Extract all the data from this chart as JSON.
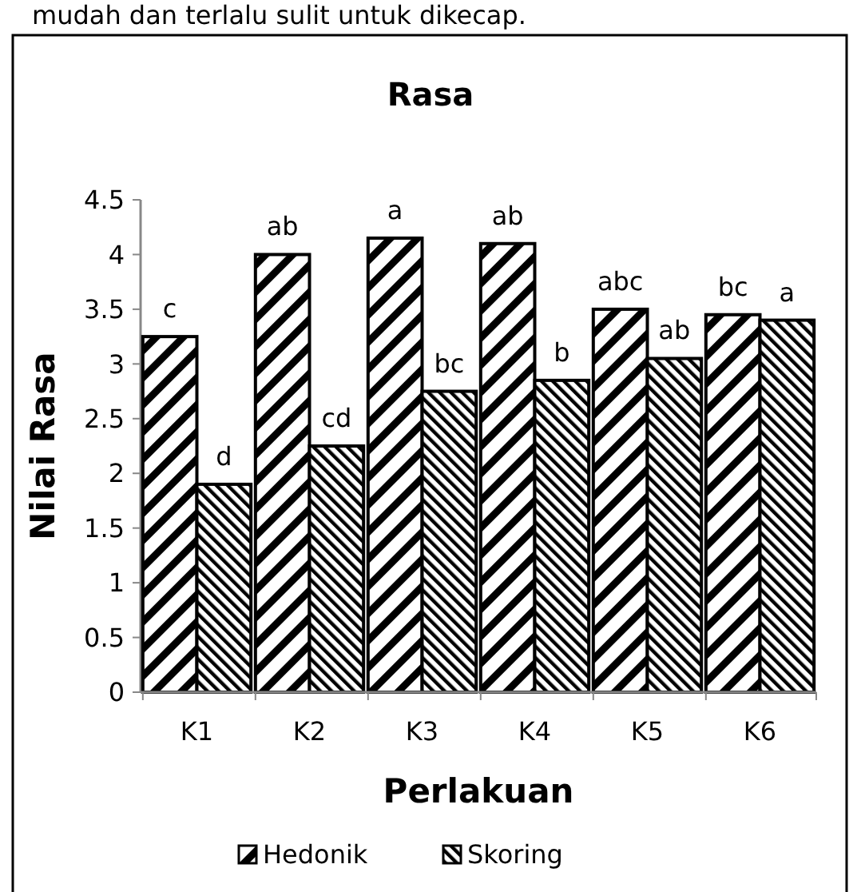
{
  "chart_data": {
    "type": "bar",
    "title": "Rasa",
    "xlabel": "Perlakuan",
    "ylabel": "Nilai Rasa",
    "annotations": [
      "mudah dan terlalu sulit untuk dikecap."
    ],
    "categories": [
      "K1",
      "K2",
      "K3",
      "K4",
      "K5",
      "K6"
    ],
    "series": [
      {
        "name": "Hedonik",
        "color": "#000000",
        "values": [
          3.25,
          4.0,
          4.15,
          4.1,
          3.5,
          3.45
        ],
        "value_labels": [
          "c",
          "ab",
          "a",
          "ab",
          "abc",
          "bc"
        ]
      },
      {
        "name": "Skoring",
        "color": "#000000",
        "values": [
          1.9,
          2.25,
          2.75,
          2.85,
          3.05,
          3.4
        ],
        "value_labels": [
          "d",
          "cd",
          "bc",
          "b",
          "ab",
          "a"
        ]
      }
    ],
    "ylim": [
      0,
      4.5
    ],
    "yticks": [
      0,
      0.5,
      1,
      1.5,
      2,
      2.5,
      3,
      3.5,
      4,
      4.5
    ],
    "grid": false,
    "legend": "bottom"
  }
}
